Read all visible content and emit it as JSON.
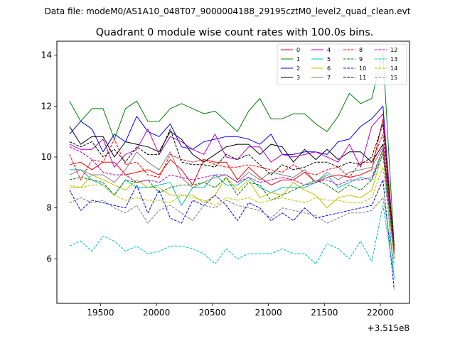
{
  "header": {
    "suptitle": "Data file: modeM0/AS1A10_048T07_9000004188_29195cztM0_level2_quad_clean.evt",
    "title": "Quadrant 0 module wise count rates with 100.0s bins."
  },
  "chart_data": {
    "type": "line",
    "title": "Quadrant 0 module wise count rates with 100.0s bins.",
    "xlabel": "",
    "ylabel": "",
    "x_offset_label": "+3.515e8",
    "x_offset": 351500000,
    "xlim": [
      19110,
      22260
    ],
    "ylim": [
      4.25,
      14.55
    ],
    "xticks": [
      19500,
      20000,
      20500,
      21000,
      21500,
      22000
    ],
    "xtick_labels": [
      "19500",
      "20000",
      "20500",
      "21000",
      "21500",
      "22000"
    ],
    "yticks": [
      6,
      8,
      10,
      12,
      14
    ],
    "ytick_labels": [
      "6",
      "8",
      "10",
      "12",
      "14"
    ],
    "grid": false,
    "legend_placement": "top-right",
    "legend_columns": 4,
    "x": [
      19223,
      19323,
      19423,
      19523,
      19623,
      19723,
      19823,
      19923,
      20023,
      20123,
      20223,
      20323,
      20423,
      20523,
      20623,
      20723,
      20823,
      20923,
      21023,
      21123,
      21223,
      21323,
      21423,
      21523,
      21623,
      21723,
      21823,
      21923,
      22023,
      22123
    ],
    "series": [
      {
        "name": "0",
        "color": "#ff0000",
        "dash": false,
        "values": [
          9.7,
          9.8,
          9.5,
          9.8,
          9.8,
          9.3,
          9.4,
          9.5,
          9.3,
          9.9,
          9.5,
          8.9,
          9.9,
          9.8,
          9.8,
          9.1,
          9.6,
          9.2,
          8.9,
          9.1,
          9.1,
          9.4,
          9.0,
          9.2,
          9.3,
          9.2,
          9.3,
          9.5,
          11.5,
          6.0
        ]
      },
      {
        "name": "1",
        "color": "#008000",
        "dash": false,
        "values": [
          12.2,
          11.4,
          11.9,
          11.9,
          10.7,
          11.9,
          12.2,
          11.4,
          11.4,
          11.9,
          12.1,
          11.9,
          11.7,
          11.8,
          11.4,
          11.0,
          11.8,
          12.3,
          11.5,
          11.5,
          11.7,
          11.7,
          11.3,
          11.0,
          11.6,
          12.5,
          12.1,
          12.3,
          14.1,
          6.5
        ]
      },
      {
        "name": "2",
        "color": "#0000ff",
        "dash": false,
        "values": [
          10.9,
          11.4,
          11.1,
          10.2,
          10.9,
          10.6,
          11.6,
          11.0,
          10.8,
          11.3,
          10.4,
          10.3,
          10.6,
          10.7,
          10.8,
          10.8,
          10.7,
          10.5,
          10.9,
          10.1,
          10.1,
          10.2,
          10.2,
          10.1,
          10.6,
          10.7,
          11.2,
          11.5,
          12.0,
          6.3
        ]
      },
      {
        "name": "3",
        "color": "#000000",
        "dash": false,
        "values": [
          11.2,
          10.5,
          10.8,
          10.8,
          10.0,
          10.6,
          10.5,
          10.4,
          10.2,
          11.0,
          10.7,
          10.1,
          9.8,
          10.1,
          10.4,
          10.5,
          10.5,
          10.1,
          10.5,
          10.4,
          9.8,
          10.3,
          9.9,
          10.3,
          9.9,
          10.2,
          10.2,
          9.8,
          10.5,
          6.4
        ]
      },
      {
        "name": "4",
        "color": "#bf00bf",
        "dash": false,
        "values": [
          10.5,
          10.3,
          10.3,
          10.7,
          9.6,
          10.1,
          10.3,
          11.1,
          10.1,
          10.8,
          10.6,
          10.3,
          10.1,
          10.9,
          10.0,
          9.9,
          10.4,
          10.4,
          9.8,
          10.1,
          10.0,
          10.1,
          10.2,
          10.0,
          9.8,
          10.5,
          9.6,
          11.2,
          11.7,
          6.5
        ]
      },
      {
        "name": "5",
        "color": "#00bfbf",
        "dash": false,
        "values": [
          9.5,
          9.5,
          9.1,
          8.9,
          8.5,
          9.1,
          8.8,
          8.8,
          8.9,
          9.0,
          8.1,
          8.8,
          8.8,
          9.3,
          8.9,
          8.9,
          9.2,
          8.8,
          8.6,
          8.8,
          8.8,
          8.8,
          9.0,
          9.3,
          8.8,
          9.0,
          9.2,
          9.1,
          10.3,
          5.2
        ]
      },
      {
        "name": "6",
        "color": "#bfbf00",
        "dash": false,
        "values": [
          8.8,
          8.8,
          9.3,
          9.1,
          8.9,
          8.7,
          9.1,
          8.8,
          8.8,
          8.5,
          8.5,
          8.5,
          8.2,
          8.5,
          9.2,
          8.7,
          9.1,
          8.4,
          8.6,
          8.5,
          9.0,
          8.7,
          8.5,
          8.0,
          8.4,
          8.5,
          8.4,
          8.7,
          10.2,
          6.1
        ]
      },
      {
        "name": "7",
        "color": "#808080",
        "dash": false,
        "values": [
          9.3,
          9.5,
          9.3,
          9.3,
          9.0,
          9.5,
          10.2,
          9.8,
          9.5,
          10.2,
          9.2,
          8.8,
          9.0,
          9.2,
          9.3,
          9.0,
          9.4,
          9.1,
          9.4,
          9.3,
          9.2,
          9.5,
          9.0,
          9.4,
          9.1,
          9.4,
          9.5,
          9.6,
          10.4,
          6.2
        ]
      },
      {
        "name": "8",
        "color": "#ff0000",
        "dash": true,
        "values": [
          10.1,
          9.1,
          9.9,
          9.8,
          10.7,
          9.7,
          9.8,
          9.3,
          9.2,
          10.1,
          9.9,
          9.8,
          9.9,
          9.7,
          9.6,
          9.6,
          9.7,
          9.6,
          9.5,
          9.4,
          9.7,
          9.4,
          9.3,
          9.5,
          9.6,
          9.2,
          9.8,
          9.8,
          10.9,
          6.3
        ]
      },
      {
        "name": "9",
        "color": "#008000",
        "dash": true,
        "values": [
          9.1,
          9.2,
          9.1,
          9.0,
          8.5,
          9.1,
          9.0,
          9.1,
          8.6,
          8.8,
          8.9,
          8.9,
          9.0,
          8.8,
          9.2,
          8.5,
          9.0,
          8.9,
          8.3,
          8.5,
          8.7,
          8.9,
          9.1,
          8.9,
          8.6,
          8.9,
          8.7,
          9.1,
          10.1,
          6.2
        ]
      },
      {
        "name": "10",
        "color": "#0000ff",
        "dash": true,
        "values": [
          8.7,
          7.9,
          8.3,
          8.2,
          8.1,
          8.0,
          8.9,
          7.8,
          8.7,
          7.6,
          7.4,
          8.3,
          8.1,
          8.5,
          8.1,
          7.5,
          8.2,
          8.0,
          7.5,
          7.8,
          7.5,
          8.0,
          7.6,
          7.7,
          7.8,
          7.9,
          8.0,
          8.1,
          9.1,
          4.8
        ]
      },
      {
        "name": "11",
        "color": "#000000",
        "dash": true,
        "values": [
          10.6,
          10.4,
          10.6,
          10.0,
          10.3,
          9.8,
          10.4,
          10.1,
          10.1,
          11.1,
          9.8,
          9.7,
          9.7,
          9.6,
          10.1,
          9.9,
          10.1,
          9.7,
          9.3,
          9.7,
          9.5,
          9.6,
          9.8,
          9.8,
          9.6,
          9.8,
          9.7,
          10.0,
          11.3,
          6.5
        ]
      },
      {
        "name": "12",
        "color": "#bf00bf",
        "dash": true,
        "values": [
          10.4,
          10.2,
          9.9,
          9.4,
          9.3,
          9.3,
          9.0,
          9.1,
          9.0,
          9.3,
          9.2,
          9.1,
          9.2,
          9.3,
          9.3,
          9.0,
          9.2,
          9.0,
          9.1,
          9.2,
          9.1,
          8.9,
          9.0,
          9.1,
          8.9,
          9.1,
          9.1,
          9.2,
          10.3,
          6.4
        ]
      },
      {
        "name": "13",
        "color": "#00bfbf",
        "dash": true,
        "values": [
          6.5,
          6.7,
          6.3,
          6.9,
          6.7,
          6.3,
          6.5,
          6.2,
          6.3,
          6.5,
          6.5,
          6.4,
          6.2,
          5.8,
          6.4,
          6.0,
          6.2,
          6.2,
          6.2,
          6.4,
          6.2,
          6.2,
          5.8,
          6.6,
          6.4,
          6.0,
          6.7,
          5.9,
          8.1,
          5.3
        ]
      },
      {
        "name": "14",
        "color": "#bfbf00",
        "dash": true,
        "values": [
          8.9,
          8.8,
          8.9,
          8.9,
          8.5,
          8.3,
          8.4,
          8.3,
          8.3,
          8.2,
          8.5,
          8.4,
          8.3,
          8.1,
          8.4,
          8.3,
          8.4,
          8.2,
          8.3,
          8.4,
          8.3,
          8.2,
          8.4,
          8.3,
          8.3,
          8.2,
          8.2,
          8.4,
          9.6,
          6.0
        ]
      },
      {
        "name": "15",
        "color": "#808080",
        "dash": true,
        "values": [
          8.2,
          8.4,
          8.2,
          8.3,
          8.0,
          7.8,
          8.1,
          7.4,
          7.9,
          8.1,
          7.8,
          7.5,
          8.1,
          8.0,
          8.3,
          8.1,
          8.0,
          7.9,
          7.6,
          8.0,
          7.9,
          7.8,
          7.7,
          7.4,
          7.6,
          7.8,
          7.8,
          7.9,
          8.4,
          5.8
        ]
      }
    ]
  }
}
